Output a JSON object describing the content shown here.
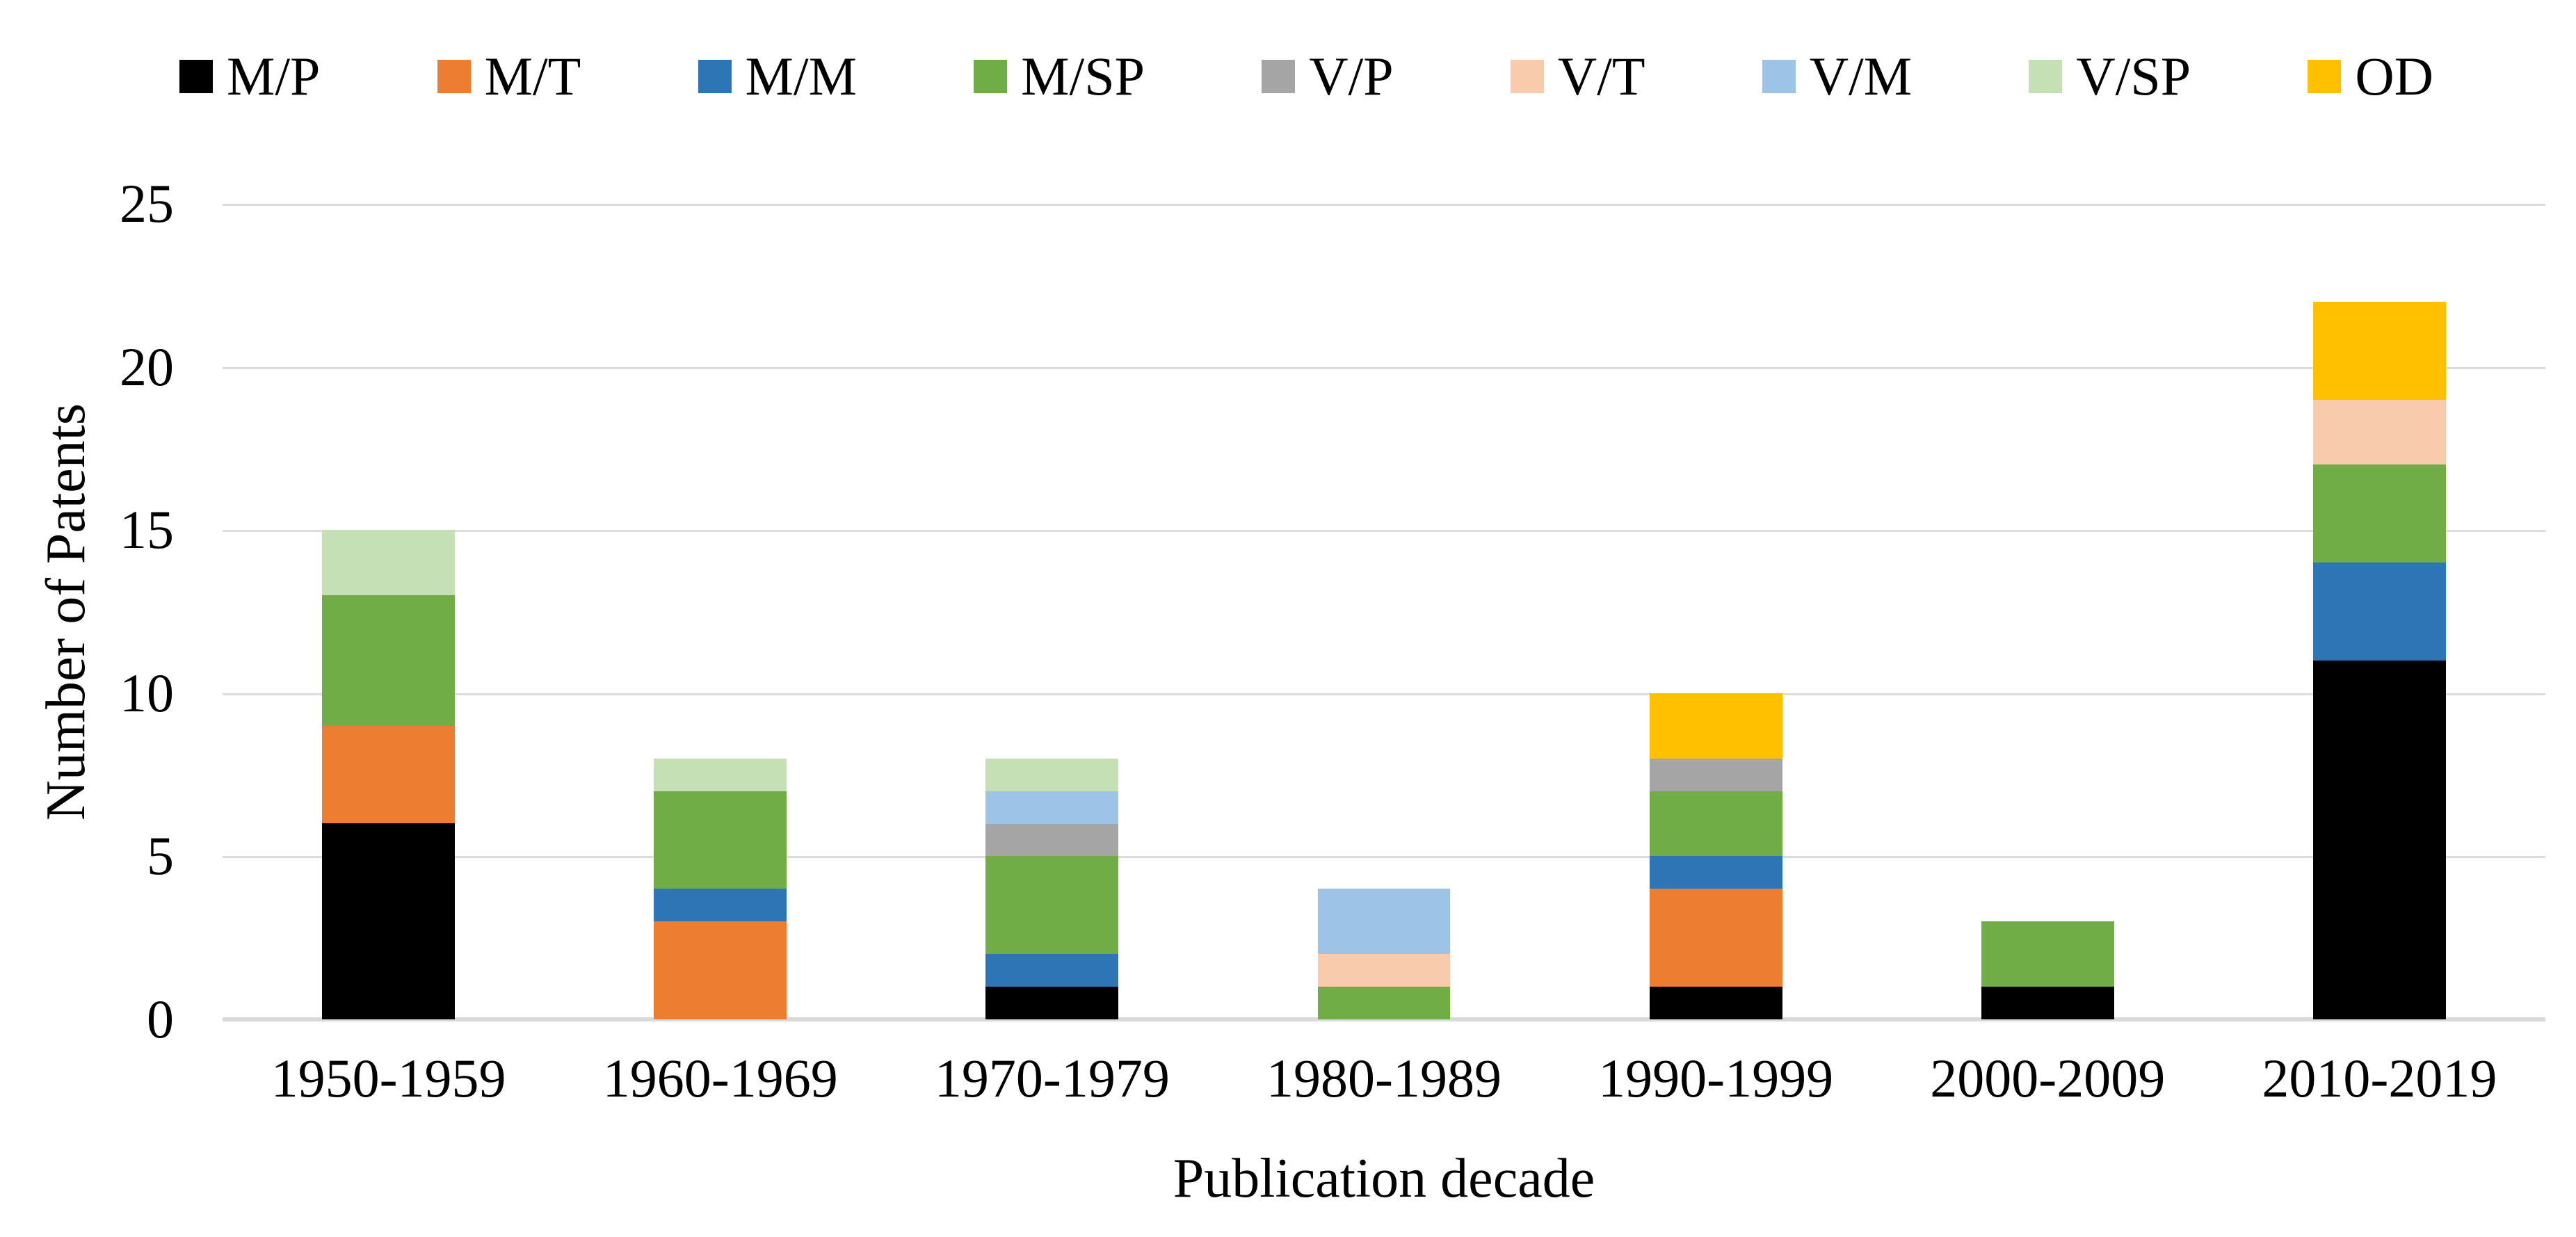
{
  "figure": {
    "background_color": "#FFFFFF",
    "gridline_color": "#DCDCDC",
    "axis_line_color": "#D9D9D9",
    "text_color": "#000000"
  },
  "chart_data": {
    "type": "bar",
    "stacked": true,
    "title": "",
    "xlabel": "Publication decade",
    "ylabel": "Number of Patents",
    "ylim": [
      0,
      25
    ],
    "ytick_interval": 5,
    "ytick_labels": [
      "25",
      "20",
      "15",
      "10",
      "5",
      "0"
    ],
    "grid": "horizontal",
    "legend_position": "top",
    "categories": [
      "1950-1959",
      "1960-1969",
      "1970-1979",
      "1980-1989",
      "1990-1999",
      "2000-2009",
      "2010-2019"
    ],
    "category_totals": [
      15,
      8,
      8,
      4,
      10,
      3,
      22
    ],
    "series": [
      {
        "name": "M/P",
        "color": "#000000",
        "values": [
          6,
          0,
          1,
          0,
          1,
          1,
          11
        ]
      },
      {
        "name": "M/T",
        "color": "#ED7D31",
        "values": [
          3,
          3,
          0,
          0,
          3,
          0,
          0
        ]
      },
      {
        "name": "M/M",
        "color": "#2E75B6",
        "values": [
          0,
          1,
          1,
          0,
          1,
          0,
          3
        ]
      },
      {
        "name": "M/SP",
        "color": "#70AD47",
        "values": [
          4,
          3,
          3,
          1,
          2,
          2,
          3
        ]
      },
      {
        "name": "V/P",
        "color": "#A5A5A5",
        "values": [
          0,
          0,
          1,
          0,
          1,
          0,
          0
        ]
      },
      {
        "name": "V/T",
        "color": "#F8CBAD",
        "values": [
          0,
          0,
          0,
          1,
          0,
          0,
          2
        ]
      },
      {
        "name": "V/M",
        "color": "#9DC3E6",
        "values": [
          0,
          0,
          1,
          2,
          0,
          0,
          0
        ]
      },
      {
        "name": "V/SP",
        "color": "#C5E0B4",
        "values": [
          2,
          1,
          1,
          0,
          0,
          0,
          0
        ]
      },
      {
        "name": "OD",
        "color": "#FFC000",
        "values": [
          0,
          0,
          0,
          0,
          2,
          0,
          3
        ]
      }
    ]
  }
}
